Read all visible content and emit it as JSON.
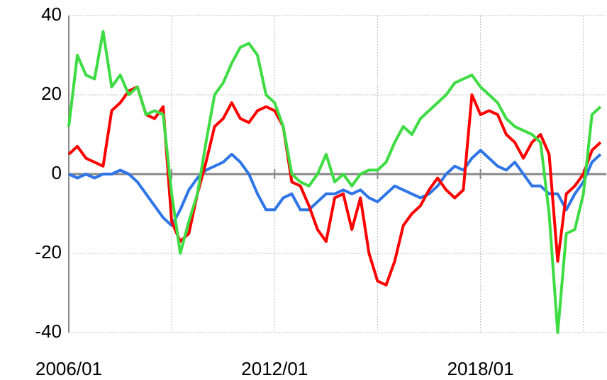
{
  "chart_data": {
    "type": "line",
    "x": [
      "2006/01",
      "2006/04",
      "2006/07",
      "2006/10",
      "2007/01",
      "2007/04",
      "2007/07",
      "2007/10",
      "2008/01",
      "2008/04",
      "2008/07",
      "2008/10",
      "2009/01",
      "2009/04",
      "2009/07",
      "2009/10",
      "2010/01",
      "2010/04",
      "2010/07",
      "2010/10",
      "2011/01",
      "2011/04",
      "2011/07",
      "2011/10",
      "2012/01",
      "2012/04",
      "2012/07",
      "2012/10",
      "2013/01",
      "2013/04",
      "2013/07",
      "2013/10",
      "2014/01",
      "2014/04",
      "2014/07",
      "2014/10",
      "2015/01",
      "2015/04",
      "2015/07",
      "2015/10",
      "2016/01",
      "2016/04",
      "2016/07",
      "2016/10",
      "2017/01",
      "2017/04",
      "2017/07",
      "2017/10",
      "2018/01",
      "2018/04",
      "2018/07",
      "2018/10",
      "2019/01",
      "2019/04",
      "2019/07",
      "2019/10",
      "2020/01",
      "2020/04",
      "2020/07",
      "2020/10",
      "2021/01",
      "2021/04",
      "2021/07"
    ],
    "series": [
      {
        "color": "#2e75e8",
        "values": [
          0,
          -1,
          0,
          -1,
          0,
          0,
          1,
          0,
          -2,
          -5,
          -8,
          -11,
          -13,
          -9,
          -4,
          -1,
          1,
          2,
          3,
          5,
          3,
          0,
          -5,
          -9,
          -9,
          -6,
          -5,
          -9,
          -9,
          -7,
          -5,
          -5,
          -4,
          -5,
          -4,
          -6,
          -7,
          -5,
          -3,
          -4,
          -5,
          -6,
          -5,
          -3,
          0,
          2,
          1,
          4,
          6,
          4,
          2,
          1,
          3,
          0,
          -3,
          -3,
          -5,
          -5,
          -9,
          -5,
          -2,
          3,
          5
        ]
      },
      {
        "color": "#ff0000",
        "values": [
          5,
          7,
          4,
          3,
          2,
          16,
          18,
          21,
          22,
          15,
          14,
          17,
          -12,
          -17,
          -15,
          -5,
          3,
          12,
          14,
          18,
          14,
          13,
          16,
          17,
          16,
          12,
          -2,
          -3,
          -8,
          -14,
          -17,
          -6,
          -5,
          -14,
          -6,
          -20,
          -27,
          -28,
          -22,
          -13,
          -10,
          -8,
          -4,
          -1,
          -4,
          -6,
          -4,
          20,
          15,
          16,
          15,
          10,
          8,
          4,
          8,
          10,
          5,
          -22,
          -5,
          -3,
          0,
          6,
          8
        ]
      },
      {
        "color": "#3ddc43",
        "values": [
          12,
          30,
          25,
          24,
          36,
          22,
          25,
          20,
          22,
          15,
          16,
          15,
          -5,
          -20,
          -12,
          -5,
          8,
          20,
          23,
          28,
          32,
          33,
          30,
          20,
          18,
          12,
          0,
          -2,
          -3,
          0,
          5,
          -2,
          0,
          -3,
          0,
          1,
          1,
          3,
          8,
          12,
          10,
          14,
          16,
          18,
          20,
          23,
          24,
          25,
          22,
          20,
          18,
          14,
          12,
          11,
          10,
          8,
          -10,
          -40,
          -15,
          -14,
          -5,
          15,
          17
        ]
      }
    ],
    "xlim": [
      "2006/01",
      "2021/09"
    ],
    "xticks": [
      "2006/01",
      {
        "value": "2009/01",
        "label": null
      },
      "2012/01",
      {
        "value": "2015/01",
        "label": null
      },
      "2018/01",
      {
        "value": "2021/01",
        "label": null
      }
    ],
    "ylim": [
      -40,
      40
    ],
    "yticks": [
      -40,
      -20,
      0,
      20,
      40
    ],
    "grid": true
  }
}
